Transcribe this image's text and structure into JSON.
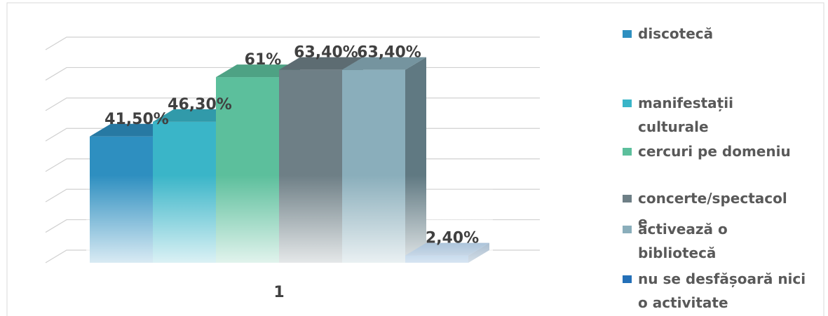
{
  "chart_data": {
    "type": "bar3d",
    "categories": [
      "1"
    ],
    "series": [
      {
        "name": "discotecă",
        "color": "#2e8fc0",
        "values": [
          41.5
        ],
        "value_labels": [
          "41,50%"
        ]
      },
      {
        "name": "manifestații culturale",
        "color": "#3ab5c8",
        "values": [
          46.3
        ],
        "value_labels": [
          "46,30%"
        ]
      },
      {
        "name": "cercuri pe domeniu",
        "color": "#5cbf9c",
        "values": [
          61
        ],
        "value_labels": [
          "61%"
        ]
      },
      {
        "name": "concerte/spectacole",
        "color": "#6e7f86",
        "values": [
          63.4
        ],
        "value_labels": [
          "63,40%"
        ]
      },
      {
        "name": "activează o bibliotecă",
        "color": "#8aaebb",
        "values": [
          63.4
        ],
        "value_labels": [
          "63,40%"
        ]
      },
      {
        "name": "nu se desfășoară nici o activitate",
        "color": "#2470b8",
        "values": [
          2.4
        ],
        "value_labels": [
          "2,40%"
        ]
      }
    ],
    "ylim": [
      0,
      70
    ],
    "yticks": [
      0,
      10,
      20,
      30,
      40,
      50,
      60,
      70
    ],
    "grid": true,
    "legend": "right"
  }
}
